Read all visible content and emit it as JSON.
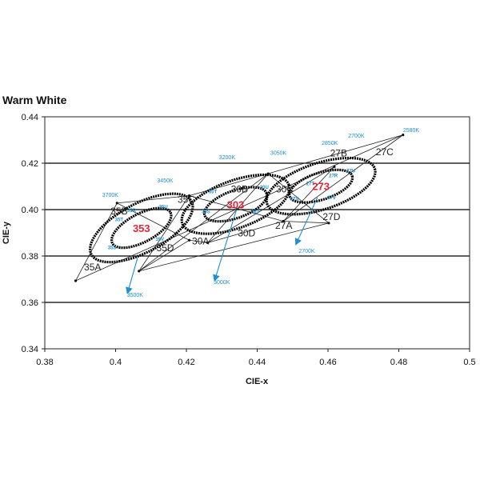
{
  "chart_data": {
    "type": "scatter",
    "title": "Warm White",
    "xlabel": "CIE-x",
    "ylabel": "CIE-y",
    "xlim": [
      0.38,
      0.5
    ],
    "ylim": [
      0.34,
      0.44
    ],
    "x_ticks": [
      "0.38",
      "0.4",
      "0.42",
      "0.44",
      "0.46",
      "0.48",
      "0.5"
    ],
    "y_ticks": [
      "0.34",
      "0.36",
      "0.38",
      "0.40",
      "0.42",
      "0.44"
    ],
    "grid": "horizontal",
    "colors": {
      "ellipse_label": "#e32636",
      "cct_label": "#1e8fd0",
      "arrow": "#1e8fd0",
      "outline": "#222222",
      "grid": "#000000"
    },
    "boundary_lines": [
      {
        "x1": 0.3887,
        "y1": 0.3693,
        "x2": 0.4812,
        "y2": 0.4322
      },
      {
        "x1": 0.4004,
        "y1": 0.4028,
        "x2": 0.4208,
        "y2": 0.406
      },
      {
        "x1": 0.4208,
        "y1": 0.406,
        "x2": 0.4431,
        "y2": 0.4155
      },
      {
        "x1": 0.4431,
        "y1": 0.4155,
        "x2": 0.4812,
        "y2": 0.4322
      },
      {
        "x1": 0.3887,
        "y1": 0.3693,
        "x2": 0.4004,
        "y2": 0.4028
      },
      {
        "x1": 0.4066,
        "y1": 0.3735,
        "x2": 0.4208,
        "y2": 0.406
      },
      {
        "x1": 0.4066,
        "y1": 0.3735,
        "x2": 0.4431,
        "y2": 0.4155
      },
      {
        "x1": 0.426,
        "y1": 0.3857,
        "x2": 0.4431,
        "y2": 0.4155
      },
      {
        "x1": 0.426,
        "y1": 0.3857,
        "x2": 0.4618,
        "y2": 0.4185
      },
      {
        "x1": 0.4474,
        "y1": 0.395,
        "x2": 0.4618,
        "y2": 0.4185
      },
      {
        "x1": 0.4474,
        "y1": 0.395,
        "x2": 0.4812,
        "y2": 0.4322
      },
      {
        "x1": 0.4066,
        "y1": 0.3735,
        "x2": 0.4208,
        "y2": 0.3868
      },
      {
        "x1": 0.4208,
        "y1": 0.3868,
        "x2": 0.426,
        "y2": 0.3857
      },
      {
        "x1": 0.426,
        "y1": 0.3857,
        "x2": 0.4474,
        "y2": 0.395
      },
      {
        "x1": 0.4474,
        "y1": 0.395,
        "x2": 0.4602,
        "y2": 0.3942
      },
      {
        "x1": 0.4066,
        "y1": 0.3735,
        "x2": 0.4602,
        "y2": 0.3942
      },
      {
        "x1": 0.4004,
        "y1": 0.4028,
        "x2": 0.4208,
        "y2": 0.3868
      },
      {
        "x1": 0.4208,
        "y1": 0.406,
        "x2": 0.4474,
        "y2": 0.395
      },
      {
        "x1": 0.4431,
        "y1": 0.4155,
        "x2": 0.4602,
        "y2": 0.3942
      }
    ],
    "ellipses": [
      {
        "label": "353",
        "cx": 0.4073,
        "cy": 0.3921,
        "rx": 0.016,
        "ry": 0.0105,
        "rot": -28,
        "inner_scale": 0.58
      },
      {
        "label": "303",
        "cx": 0.4339,
        "cy": 0.4023,
        "rx": 0.016,
        "ry": 0.0102,
        "rot": -20,
        "inner_scale": 0.58
      },
      {
        "label": "273",
        "cx": 0.458,
        "cy": 0.4101,
        "rx": 0.016,
        "ry": 0.01,
        "rot": -18,
        "inner_scale": 0.58
      }
    ],
    "arrows": [
      {
        "label": "3500K",
        "x1": 0.4062,
        "y1": 0.3792,
        "x2": 0.4034,
        "y2": 0.3642
      },
      {
        "label": "3000K",
        "x1": 0.4341,
        "y1": 0.3997,
        "x2": 0.428,
        "y2": 0.3696
      },
      {
        "label": "2700K",
        "x1": 0.457,
        "y1": 0.4052,
        "x2": 0.451,
        "y2": 0.3852
      }
    ],
    "cct_labels": [
      {
        "text": "3700K",
        "x": 0.3985,
        "y": 0.4055
      },
      {
        "text": "3450K",
        "x": 0.414,
        "y": 0.4117
      },
      {
        "text": "3200K",
        "x": 0.4315,
        "y": 0.4217
      },
      {
        "text": "3050K",
        "x": 0.446,
        "y": 0.4237
      },
      {
        "text": "2850K",
        "x": 0.4605,
        "y": 0.428
      },
      {
        "text": "2700K",
        "x": 0.468,
        "y": 0.431
      },
      {
        "text": "2580K",
        "x": 0.4835,
        "y": 0.4335
      },
      {
        "text": "3500K",
        "x": 0.4055,
        "y": 0.3625
      },
      {
        "text": "3000K",
        "x": 0.43,
        "y": 0.368
      },
      {
        "text": "2700K",
        "x": 0.454,
        "y": 0.3814
      }
    ],
    "bin_labels": [
      {
        "text": "35A",
        "x": 0.3935,
        "y": 0.3738
      },
      {
        "text": "35B",
        "x": 0.401,
        "y": 0.398
      },
      {
        "text": "35C",
        "x": 0.42,
        "y": 0.403
      },
      {
        "text": "35D",
        "x": 0.414,
        "y": 0.382
      },
      {
        "text": "30A",
        "x": 0.424,
        "y": 0.385
      },
      {
        "text": "30B",
        "x": 0.435,
        "y": 0.4075
      },
      {
        "text": "30C",
        "x": 0.4478,
        "y": 0.4075
      },
      {
        "text": "30D",
        "x": 0.437,
        "y": 0.3885
      },
      {
        "text": "27A",
        "x": 0.4475,
        "y": 0.3918
      },
      {
        "text": "27B",
        "x": 0.463,
        "y": 0.423
      },
      {
        "text": "27C",
        "x": 0.476,
        "y": 0.4235
      },
      {
        "text": "27D",
        "x": 0.461,
        "y": 0.3955
      }
    ],
    "small_labels": [
      {
        "text": "35R",
        "x": 0.4045,
        "y": 0.399
      },
      {
        "text": "35T",
        "x": 0.401,
        "y": 0.395
      },
      {
        "text": "35U",
        "x": 0.4135,
        "y": 0.4005
      },
      {
        "text": "35V",
        "x": 0.4125,
        "y": 0.3865
      },
      {
        "text": "35S",
        "x": 0.399,
        "y": 0.383
      },
      {
        "text": "30T",
        "x": 0.4275,
        "y": 0.407
      },
      {
        "text": "30U",
        "x": 0.442,
        "y": 0.409
      },
      {
        "text": "30V",
        "x": 0.4395,
        "y": 0.3985
      },
      {
        "text": "30S",
        "x": 0.4255,
        "y": 0.3985
      },
      {
        "text": "27R",
        "x": 0.4615,
        "y": 0.414
      },
      {
        "text": "27T",
        "x": 0.455,
        "y": 0.4105
      },
      {
        "text": "27U",
        "x": 0.4665,
        "y": 0.416
      },
      {
        "text": "27V",
        "x": 0.461,
        "y": 0.4045
      },
      {
        "text": "27S",
        "x": 0.4505,
        "y": 0.404
      }
    ]
  }
}
